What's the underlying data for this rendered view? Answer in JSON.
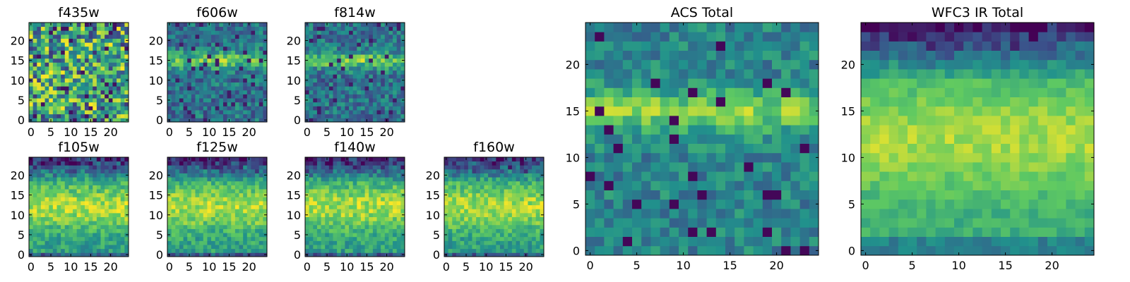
{
  "figure": {
    "colormap": "viridis",
    "colors": [
      "#440154",
      "#3b528b",
      "#21918c",
      "#5ec962",
      "#fde725"
    ]
  },
  "chart_data": [
    {
      "type": "heatmap",
      "title": "f435w",
      "grid_size": [
        25,
        25
      ],
      "xticks": [
        0,
        5,
        10,
        15,
        20
      ],
      "yticks": [
        0,
        5,
        10,
        15,
        20
      ],
      "xlim": [
        -0.5,
        24.5
      ],
      "ylim": [
        -0.5,
        24.5
      ],
      "pattern": "noise",
      "seed": 11
    },
    {
      "type": "heatmap",
      "title": "f606w",
      "grid_size": [
        25,
        25
      ],
      "xticks": [
        0,
        5,
        10,
        15,
        20
      ],
      "yticks": [
        0,
        5,
        10,
        15,
        20
      ],
      "xlim": [
        -0.5,
        24.5
      ],
      "ylim": [
        -0.5,
        24.5
      ],
      "pattern": "band",
      "seed": 23
    },
    {
      "type": "heatmap",
      "title": "f814w",
      "grid_size": [
        25,
        25
      ],
      "xticks": [
        0,
        5,
        10,
        15,
        20
      ],
      "yticks": [
        0,
        5,
        10,
        15,
        20
      ],
      "xlim": [
        -0.5,
        24.5
      ],
      "ylim": [
        -0.5,
        24.5
      ],
      "pattern": "band",
      "seed": 37
    },
    {
      "type": "heatmap",
      "title": "f105w",
      "grid_size": [
        25,
        25
      ],
      "xticks": [
        0,
        5,
        10,
        15,
        20
      ],
      "yticks": [
        0,
        5,
        10,
        15,
        20
      ],
      "xlim": [
        -0.5,
        24.5
      ],
      "ylim": [
        -0.5,
        24.5
      ],
      "pattern": "ir",
      "seed": 41
    },
    {
      "type": "heatmap",
      "title": "f125w",
      "grid_size": [
        25,
        25
      ],
      "xticks": [
        0,
        5,
        10,
        15,
        20
      ],
      "yticks": [
        0,
        5,
        10,
        15,
        20
      ],
      "xlim": [
        -0.5,
        24.5
      ],
      "ylim": [
        -0.5,
        24.5
      ],
      "pattern": "ir",
      "seed": 53
    },
    {
      "type": "heatmap",
      "title": "f140w",
      "grid_size": [
        25,
        25
      ],
      "xticks": [
        0,
        5,
        10,
        15,
        20
      ],
      "yticks": [
        0,
        5,
        10,
        15,
        20
      ],
      "xlim": [
        -0.5,
        24.5
      ],
      "ylim": [
        -0.5,
        24.5
      ],
      "pattern": "ir",
      "seed": 67
    },
    {
      "type": "heatmap",
      "title": "f160w",
      "grid_size": [
        25,
        25
      ],
      "xticks": [
        0,
        5,
        10,
        15,
        20
      ],
      "yticks": [
        0,
        5,
        10,
        15,
        20
      ],
      "xlim": [
        -0.5,
        24.5
      ],
      "ylim": [
        -0.5,
        24.5
      ],
      "pattern": "ir",
      "seed": 79
    },
    {
      "type": "heatmap",
      "title": "ACS Total",
      "grid_size": [
        25,
        25
      ],
      "xticks": [
        0,
        5,
        10,
        15,
        20
      ],
      "yticks": [
        0,
        5,
        10,
        15,
        20
      ],
      "xlim": [
        -0.5,
        24.5
      ],
      "ylim": [
        -0.5,
        24.5
      ],
      "pattern": "acs",
      "seed": 83
    },
    {
      "type": "heatmap",
      "title": "WFC3 IR Total",
      "grid_size": [
        25,
        25
      ],
      "xticks": [
        0,
        5,
        10,
        15,
        20
      ],
      "yticks": [
        0,
        5,
        10,
        15,
        20
      ],
      "xlim": [
        -0.5,
        24.5
      ],
      "ylim": [
        -0.5,
        24.5
      ],
      "pattern": "irtot",
      "seed": 97
    }
  ]
}
